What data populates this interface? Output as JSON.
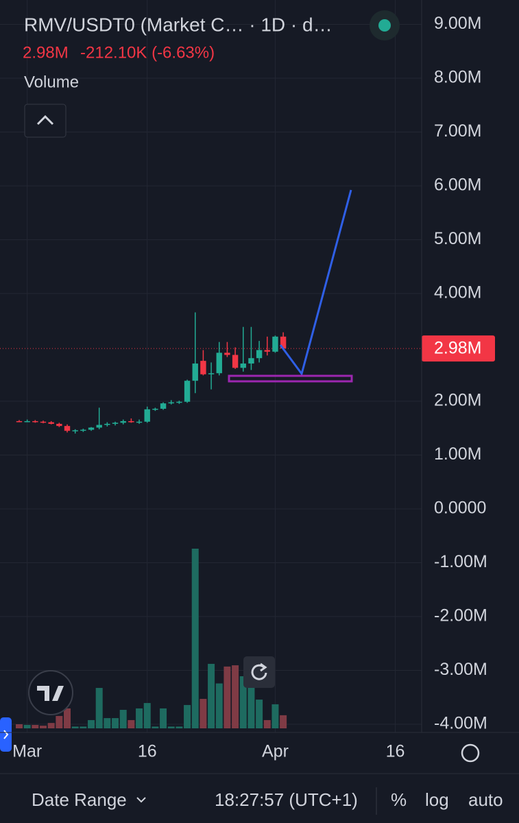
{
  "chart_data": {
    "type": "candlestick",
    "title": "RMV/USDT0 (Market C… · 1D · d…",
    "price_label": "2.98M",
    "change_label": "-212.10K (-6.63%)",
    "volume_label": "Volume",
    "categories": [
      null,
      "Mar",
      null,
      null,
      null,
      null,
      null,
      null,
      null,
      null,
      null,
      null,
      null,
      null,
      null,
      null,
      "16",
      null,
      null,
      null,
      null,
      null,
      null,
      null,
      null,
      null,
      null,
      null,
      null,
      null,
      null,
      null,
      "Apr",
      null,
      null,
      null,
      null,
      null,
      null,
      null,
      null,
      null,
      null,
      null,
      null,
      null,
      null,
      "16",
      null,
      null,
      null
    ],
    "open": [
      1630000,
      1620000,
      1630000,
      1620000,
      1610000,
      1580000,
      1540000,
      1450000,
      1460000,
      1470000,
      1510000,
      1560000,
      1580000,
      1600000,
      1630000,
      1610000,
      1620000,
      1850000,
      1860000,
      1960000,
      1980000,
      1990000,
      2380000,
      2750000,
      2500000,
      2520000,
      2900000,
      2860000,
      2620000,
      2700000,
      2800000,
      2950000,
      2920000,
      3200000,
      null,
      null,
      null,
      null,
      null,
      null,
      null,
      null,
      null,
      null,
      null,
      null,
      null,
      null,
      null,
      null,
      null
    ],
    "high": [
      1650000,
      1660000,
      1650000,
      1640000,
      1630000,
      1600000,
      1570000,
      1480000,
      1490000,
      1520000,
      1880000,
      1610000,
      1620000,
      1660000,
      1680000,
      1660000,
      1900000,
      1880000,
      1980000,
      2020000,
      2010000,
      2400000,
      3650000,
      2950000,
      2720000,
      3100000,
      3100000,
      3000000,
      3380000,
      3380000,
      3120000,
      3200000,
      3220000,
      3280000,
      null,
      null,
      null,
      null,
      null,
      null,
      null,
      null,
      null,
      null,
      null,
      null,
      null,
      null,
      null,
      null,
      null
    ],
    "low": [
      1610000,
      1610000,
      1600000,
      1590000,
      1570000,
      1520000,
      1420000,
      1400000,
      1430000,
      1450000,
      1480000,
      1530000,
      1550000,
      1570000,
      1600000,
      1580000,
      1600000,
      1820000,
      1840000,
      1940000,
      1950000,
      1970000,
      2150000,
      2480000,
      2220000,
      2480000,
      2820000,
      2600000,
      2550000,
      2580000,
      2720000,
      2850000,
      2900000,
      2950000,
      null,
      null,
      null,
      null,
      null,
      null,
      null,
      null,
      null,
      null,
      null,
      null,
      null,
      null,
      null,
      null,
      null
    ],
    "close": [
      1620000,
      1630000,
      1620000,
      1610000,
      1580000,
      1540000,
      1450000,
      1460000,
      1470000,
      1510000,
      1560000,
      1580000,
      1600000,
      1630000,
      1610000,
      1620000,
      1850000,
      1860000,
      1960000,
      1980000,
      1990000,
      2380000,
      2700000,
      2500000,
      2520000,
      2900000,
      2860000,
      2620000,
      2700000,
      2800000,
      2950000,
      2920000,
      3200000,
      2980000,
      null,
      null,
      null,
      null,
      null,
      null,
      null,
      null,
      null,
      null,
      null,
      null,
      null,
      null,
      null,
      null,
      null
    ],
    "volume": [
      2.3,
      1.9,
      1.9,
      1.5,
      3,
      6.9,
      11.1,
      1,
      1,
      4.6,
      22.5,
      5.7,
      5.7,
      10.3,
      4.6,
      11.1,
      14.1,
      1,
      11.1,
      1,
      1,
      13,
      100,
      16.4,
      35.9,
      25,
      34.4,
      35.1,
      29,
      24,
      16,
      4.6,
      13.4,
      7.3,
      null,
      null,
      null,
      null,
      null,
      null,
      null,
      null,
      null,
      null,
      null,
      null,
      null,
      null,
      null,
      null,
      null
    ],
    "up_color": "#22ab94",
    "down_color": "#f23645",
    "volume_up_color": "#1e6b60",
    "volume_down_color": "#7f3b45",
    "ylim": [
      -4076000,
      9452000
    ],
    "yticks": [
      {
        "value": 9000000,
        "label": "9.00M"
      },
      {
        "value": 8000000,
        "label": "8.00M"
      },
      {
        "value": 7000000,
        "label": "7.00M"
      },
      {
        "value": 6000000,
        "label": "6.00M"
      },
      {
        "value": 5000000,
        "label": "5.00M"
      },
      {
        "value": 4000000,
        "label": "4.00M"
      },
      {
        "value": 2000000,
        "label": "2.00M"
      },
      {
        "value": 1000000,
        "label": "1.00M"
      },
      {
        "value": 0,
        "label": "0.0000"
      },
      {
        "value": -1000000,
        "label": "-1.00M"
      },
      {
        "value": -2000000,
        "label": "-2.00M"
      },
      {
        "value": -3000000,
        "label": "-3.00M"
      },
      {
        "value": -4000000,
        "label": "-4.00M"
      }
    ],
    "last_price": {
      "value": 2980000,
      "label": "2.98M"
    },
    "grid": true
  },
  "toolbar": {
    "date_range": "Date Range",
    "time": "18:27:57 (UTC+1)",
    "percent": "%",
    "log": "log",
    "auto": "auto"
  }
}
